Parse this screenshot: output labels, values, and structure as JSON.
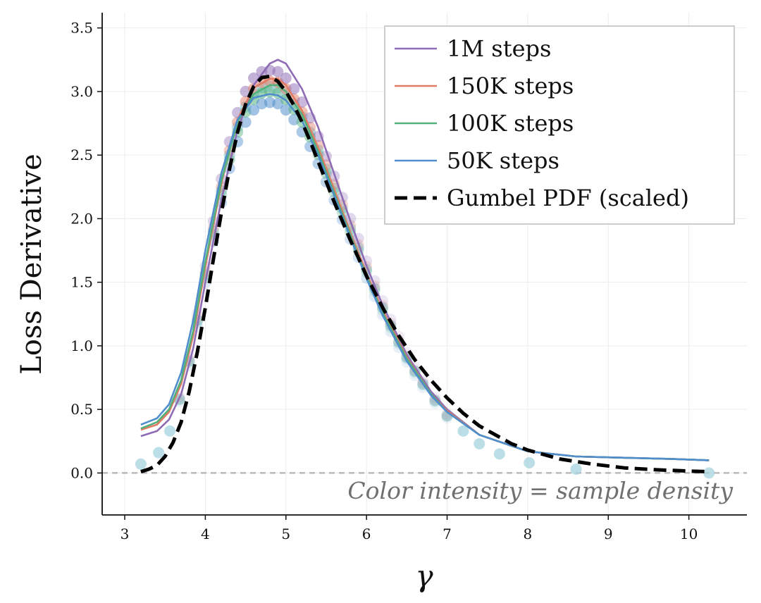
{
  "chart_data": {
    "type": "line",
    "xlabel": "γ",
    "ylabel": "Loss Derivative",
    "xlim": [
      2.72,
      10.72
    ],
    "ylim": [
      -0.33,
      3.62
    ],
    "x_ticks": [
      3,
      4,
      5,
      6,
      7,
      8,
      9,
      10
    ],
    "y_ticks": [
      0.0,
      0.5,
      1.0,
      1.5,
      2.0,
      2.5,
      3.0,
      3.5
    ],
    "y_tick_labels": [
      "0.0",
      "0.5",
      "1.0",
      "1.5",
      "2.0",
      "2.5",
      "3.0",
      "3.5"
    ],
    "grid": true,
    "legend_position": "top-right",
    "annotation": "Color intensity = sample density",
    "reference_line": {
      "y": 0.0,
      "style": "dashed",
      "color": "#aaaaaa"
    },
    "series": [
      {
        "name": "1M steps",
        "color": "#8e6bb5",
        "x": [
          3.2,
          3.4,
          3.55,
          3.7,
          3.85,
          4.0,
          4.2,
          4.4,
          4.6,
          4.8,
          4.9,
          5.0,
          5.2,
          5.4,
          5.6,
          5.8,
          6.0,
          6.2,
          6.5,
          6.8,
          7.0,
          7.4,
          8.0,
          8.6,
          9.2,
          9.8,
          10.25
        ],
        "y": [
          0.29,
          0.33,
          0.42,
          0.62,
          0.98,
          1.5,
          2.15,
          2.7,
          3.05,
          3.22,
          3.25,
          3.22,
          3.02,
          2.72,
          2.35,
          1.98,
          1.63,
          1.32,
          0.93,
          0.64,
          0.5,
          0.3,
          0.17,
          0.13,
          0.12,
          0.11,
          0.1
        ]
      },
      {
        "name": "150K steps",
        "color": "#e07b64",
        "x": [
          3.2,
          3.4,
          3.55,
          3.7,
          3.85,
          4.0,
          4.2,
          4.4,
          4.6,
          4.8,
          4.9,
          5.0,
          5.2,
          5.4,
          5.6,
          5.8,
          6.0,
          6.2,
          6.5,
          6.8,
          7.0,
          7.4,
          8.0,
          8.6,
          9.2,
          9.8,
          10.25
        ],
        "y": [
          0.34,
          0.38,
          0.48,
          0.7,
          1.08,
          1.62,
          2.28,
          2.78,
          3.03,
          3.1,
          3.1,
          3.05,
          2.85,
          2.56,
          2.23,
          1.89,
          1.57,
          1.28,
          0.91,
          0.62,
          0.49,
          0.3,
          0.17,
          0.13,
          0.12,
          0.11,
          0.1
        ]
      },
      {
        "name": "100K steps",
        "color": "#52b07a",
        "x": [
          3.2,
          3.4,
          3.55,
          3.7,
          3.85,
          4.0,
          4.2,
          4.4,
          4.6,
          4.8,
          4.9,
          5.0,
          5.2,
          5.4,
          5.6,
          5.8,
          6.0,
          6.2,
          6.5,
          6.8,
          7.0,
          7.4,
          8.0,
          8.6,
          9.2,
          9.8,
          10.25
        ],
        "y": [
          0.35,
          0.4,
          0.5,
          0.73,
          1.12,
          1.66,
          2.3,
          2.76,
          2.98,
          3.05,
          3.05,
          3.0,
          2.82,
          2.53,
          2.2,
          1.87,
          1.55,
          1.26,
          0.9,
          0.62,
          0.48,
          0.3,
          0.17,
          0.13,
          0.12,
          0.11,
          0.1
        ]
      },
      {
        "name": "50K steps",
        "color": "#4f8dcc",
        "x": [
          3.2,
          3.4,
          3.55,
          3.7,
          3.85,
          4.0,
          4.2,
          4.4,
          4.6,
          4.8,
          4.9,
          5.0,
          5.2,
          5.4,
          5.6,
          5.8,
          6.0,
          6.2,
          6.5,
          6.8,
          7.0,
          7.4,
          8.0,
          8.6,
          9.2,
          9.8,
          10.25
        ],
        "y": [
          0.38,
          0.43,
          0.54,
          0.79,
          1.2,
          1.75,
          2.36,
          2.78,
          2.95,
          2.98,
          2.97,
          2.93,
          2.77,
          2.5,
          2.18,
          1.85,
          1.53,
          1.24,
          0.88,
          0.61,
          0.48,
          0.3,
          0.17,
          0.13,
          0.12,
          0.11,
          0.1
        ]
      },
      {
        "name": "Gumbel PDF (scaled)",
        "color": "#000000",
        "dashed": true,
        "x": [
          3.2,
          3.3,
          3.4,
          3.5,
          3.6,
          3.7,
          3.8,
          3.9,
          4.0,
          4.1,
          4.2,
          4.3,
          4.4,
          4.5,
          4.6,
          4.7,
          4.8,
          4.9,
          5.0,
          5.1,
          5.2,
          5.3,
          5.4,
          5.5,
          5.6,
          5.8,
          6.0,
          6.2,
          6.4,
          6.6,
          6.8,
          7.0,
          7.2,
          7.4,
          7.6,
          7.8,
          8.0,
          8.4,
          8.8,
          9.2,
          9.6,
          10.0,
          10.25
        ],
        "y": [
          0.01,
          0.03,
          0.06,
          0.13,
          0.24,
          0.4,
          0.64,
          0.95,
          1.3,
          1.68,
          2.05,
          2.39,
          2.68,
          2.9,
          3.04,
          3.11,
          3.12,
          3.08,
          3.0,
          2.89,
          2.76,
          2.61,
          2.45,
          2.29,
          2.13,
          1.83,
          1.55,
          1.3,
          1.08,
          0.89,
          0.73,
          0.59,
          0.47,
          0.37,
          0.3,
          0.23,
          0.18,
          0.11,
          0.07,
          0.04,
          0.025,
          0.015,
          0.01
        ]
      }
    ],
    "density_samples": {
      "x": [
        3.2,
        3.42,
        3.56,
        3.68,
        3.8,
        3.9,
        4.0,
        4.1,
        4.2,
        4.3,
        4.4,
        4.5,
        4.6,
        4.7,
        4.8,
        4.9,
        5.0,
        5.1,
        5.2,
        5.3,
        5.4,
        5.5,
        5.6,
        5.7,
        5.8,
        5.9,
        6.0,
        6.1,
        6.2,
        6.3,
        6.4,
        6.5,
        6.6,
        6.7,
        6.85,
        7.0,
        7.2,
        7.4,
        7.65,
        8.02,
        8.6,
        10.25
      ],
      "y": [
        0.07,
        0.16,
        0.33,
        0.58,
        0.88,
        1.2,
        1.56,
        1.9,
        2.22,
        2.5,
        2.72,
        2.88,
        2.98,
        3.03,
        3.04,
        3.03,
        2.98,
        2.9,
        2.8,
        2.68,
        2.54,
        2.39,
        2.24,
        2.08,
        1.92,
        1.77,
        1.6,
        1.45,
        1.3,
        1.16,
        1.03,
        0.91,
        0.8,
        0.7,
        0.57,
        0.45,
        0.33,
        0.23,
        0.15,
        0.08,
        0.03,
        0.0
      ],
      "color": "#a6d4df"
    }
  }
}
